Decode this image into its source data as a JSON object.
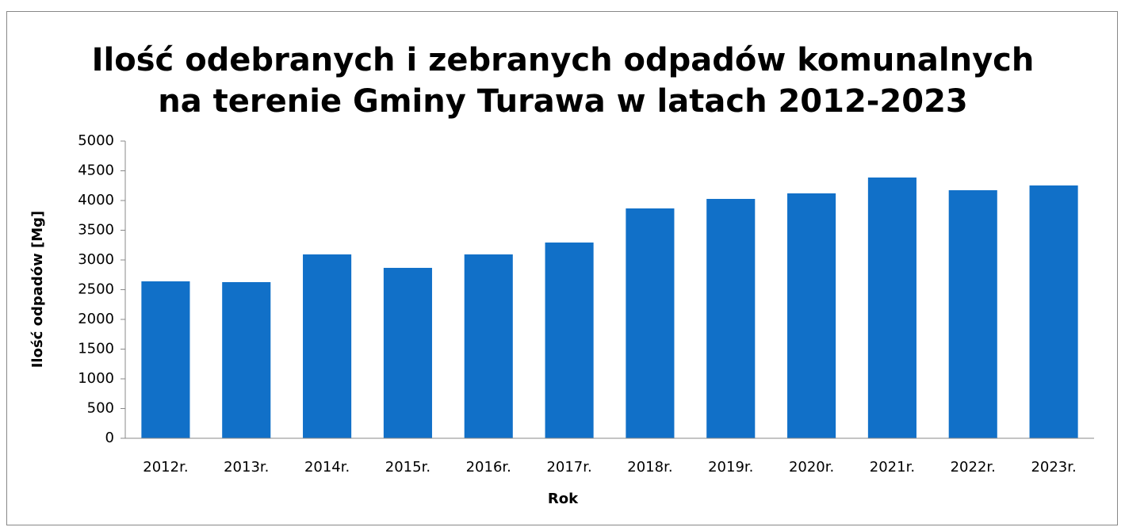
{
  "chart_data": {
    "type": "bar",
    "title": "Ilość odebranych i zebranych odpadów komunalnych na terenie Gminy Turawa w latach 2012-2023",
    "xlabel": "Rok",
    "ylabel": "Ilość odpadów [Mg]",
    "categories": [
      "2012r.",
      "2013r.",
      "2014r.",
      "2015r.",
      "2016r.",
      "2017r.",
      "2018r.",
      "2019r.",
      "2020r.",
      "2021r.",
      "2022r.",
      "2023r."
    ],
    "values": [
      2640,
      2627,
      3093,
      2867,
      3093,
      3293,
      3867,
      4027,
      4120,
      4387,
      4173,
      4253
    ],
    "color": "#1170c8",
    "ylim": [
      0,
      5000
    ],
    "yticks": [
      0,
      500,
      1000,
      1500,
      2000,
      2500,
      3000,
      3500,
      4000,
      4500,
      5000
    ],
    "grid": false
  }
}
